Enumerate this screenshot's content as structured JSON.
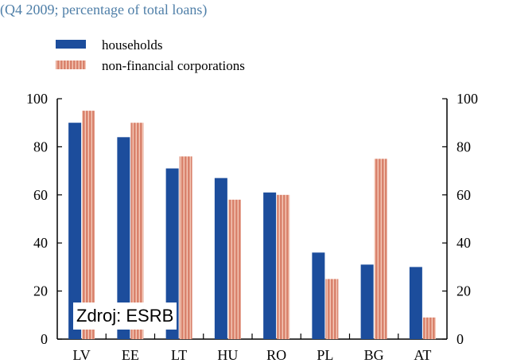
{
  "subtitle": "(Q4 2009; percentage of total loans)",
  "source_label": "Zdroj: ESRB",
  "colors": {
    "households": "#1c4d9c",
    "corporations": "#d9826c",
    "corporations_stripe": "#f4c9b8",
    "subtitle": "#4f7fa8"
  },
  "chart_data": {
    "type": "bar",
    "title": "",
    "xlabel": "",
    "ylabel": "",
    "ylim": [
      0,
      100
    ],
    "yticks": [
      0,
      20,
      40,
      60,
      80,
      100
    ],
    "grid": false,
    "legend": "top-left",
    "categories": [
      "LV",
      "EE",
      "LT",
      "HU",
      "RO",
      "PL",
      "BG",
      "AT"
    ],
    "series": [
      {
        "name": "households",
        "values": [
          90,
          84,
          71,
          67,
          61,
          36,
          31,
          30
        ]
      },
      {
        "name": "non-financial corporations",
        "values": [
          95,
          90,
          76,
          58,
          60,
          25,
          75,
          9
        ]
      }
    ]
  }
}
